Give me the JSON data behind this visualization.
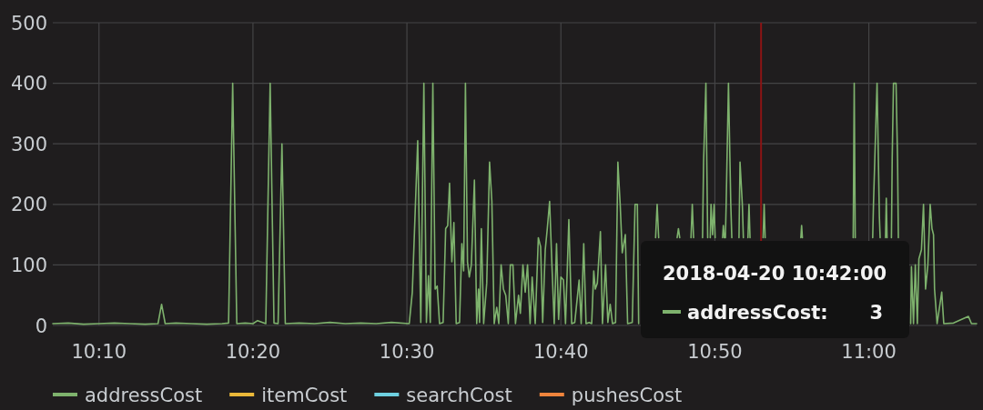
{
  "chart_data": {
    "type": "line",
    "series": [
      {
        "name": "addressCost",
        "color": "#7eb26d",
        "x": [
          "2018-04-20T10:07:00",
          "2018-04-20T10:08:00",
          "2018-04-20T10:09:00",
          "2018-04-20T10:10:00",
          "2018-04-20T10:11:00",
          "2018-04-20T10:12:00",
          "2018-04-20T10:13:00",
          "2018-04-20T10:13:50",
          "2018-04-20T10:14:04",
          "2018-04-20T10:14:18",
          "2018-04-20T10:15:00",
          "2018-04-20T10:16:00",
          "2018-04-20T10:17:00",
          "2018-04-20T10:18:00",
          "2018-04-20T10:18:25",
          "2018-04-20T10:18:41",
          "2018-04-20T10:18:57",
          "2018-04-20T10:19:30",
          "2018-04-20T10:20:00",
          "2018-04-20T10:20:18",
          "2018-04-20T10:20:50",
          "2018-04-20T10:21:07",
          "2018-04-20T10:21:22",
          "2018-04-20T10:21:38",
          "2018-04-20T10:21:53",
          "2018-04-20T10:22:06",
          "2018-04-20T10:23:00",
          "2018-04-20T10:24:00",
          "2018-04-20T10:25:00",
          "2018-04-20T10:26:00",
          "2018-04-20T10:27:00",
          "2018-04-20T10:28:00",
          "2018-04-20T10:29:00",
          "2018-04-20T10:30:09",
          "2018-04-20T10:30:21",
          "2018-04-20T10:30:42",
          "2018-04-20T10:30:54",
          "2018-04-20T10:31:06",
          "2018-04-20T10:31:16",
          "2018-04-20T10:31:24",
          "2018-04-20T10:31:31",
          "2018-04-20T10:31:41",
          "2018-04-20T10:31:50",
          "2018-04-20T10:31:58",
          "2018-04-20T10:32:07",
          "2018-04-20T10:32:21",
          "2018-04-20T10:32:31",
          "2018-04-20T10:32:39",
          "2018-04-20T10:32:46",
          "2018-04-20T10:32:55",
          "2018-04-20T10:33:03",
          "2018-04-20T10:33:12",
          "2018-04-20T10:33:25",
          "2018-04-20T10:33:34",
          "2018-04-20T10:33:41",
          "2018-04-20T10:33:48",
          "2018-04-20T10:33:56",
          "2018-04-20T10:34:03",
          "2018-04-20T10:34:11",
          "2018-04-20T10:34:23",
          "2018-04-20T10:34:32",
          "2018-04-20T10:34:39",
          "2018-04-20T10:34:43",
          "2018-04-20T10:34:50",
          "2018-04-20T10:34:59",
          "2018-04-20T10:35:11",
          "2018-04-20T10:35:22",
          "2018-04-20T10:35:31",
          "2018-04-20T10:35:40",
          "2018-04-20T10:35:50",
          "2018-04-20T10:35:58",
          "2018-04-20T10:36:07",
          "2018-04-20T10:36:16",
          "2018-04-20T10:36:25",
          "2018-04-20T10:36:35",
          "2018-04-20T10:36:43",
          "2018-04-20T10:36:53",
          "2018-04-20T10:37:03",
          "2018-04-20T10:37:15",
          "2018-04-20T10:37:22",
          "2018-04-20T10:37:32",
          "2018-04-20T10:37:41",
          "2018-04-20T10:37:50",
          "2018-04-20T10:38:00",
          "2018-04-20T10:38:08",
          "2018-04-20T10:38:20",
          "2018-04-20T10:38:32",
          "2018-04-20T10:38:41",
          "2018-04-20T10:38:49",
          "2018-04-20T10:38:59",
          "2018-04-20T10:39:07",
          "2018-04-20T10:39:16",
          "2018-04-20T10:39:25",
          "2018-04-20T10:39:34",
          "2018-04-20T10:39:43",
          "2018-04-20T10:39:51",
          "2018-04-20T10:40:00",
          "2018-04-20T10:40:10",
          "2018-04-20T10:40:18",
          "2018-04-20T10:40:31",
          "2018-04-20T10:40:42",
          "2018-04-20T10:40:54",
          "2018-04-20T10:41:11",
          "2018-04-20T10:41:19",
          "2018-04-20T10:41:29",
          "2018-04-20T10:41:38",
          "2018-04-20T10:41:50",
          "2018-04-20T10:42:00",
          "2018-04-20T10:42:08",
          "2018-04-20T10:42:14",
          "2018-04-20T10:42:22",
          "2018-04-20T10:42:34",
          "2018-04-20T10:42:42",
          "2018-04-20T10:42:54",
          "2018-04-20T10:43:03",
          "2018-04-20T10:43:12",
          "2018-04-20T10:43:21",
          "2018-04-20T10:43:33",
          "2018-04-20T10:43:42",
          "2018-04-20T10:43:51",
          "2018-04-20T10:43:59",
          "2018-04-20T10:44:11",
          "2018-04-20T10:44:20",
          "2018-04-20T10:44:38",
          "2018-04-20T10:44:49",
          "2018-04-20T10:44:58",
          "2018-04-20T10:45:03",
          "2018-04-20T10:45:40",
          "2018-04-20T10:46:09",
          "2018-04-20T10:46:15",
          "2018-04-20T10:46:21",
          "2018-04-20T10:47:00",
          "2018-04-20T10:47:33",
          "2018-04-20T10:47:38",
          "2018-04-20T10:47:43",
          "2018-04-20T10:48:00",
          "2018-04-20T10:48:27",
          "2018-04-20T10:48:32",
          "2018-04-20T10:48:37",
          "2018-04-20T10:48:55",
          "2018-04-20T10:49:12",
          "2018-04-20T10:49:16",
          "2018-04-20T10:49:25",
          "2018-04-20T10:49:32",
          "2018-04-20T10:49:38",
          "2018-04-20T10:49:42",
          "2018-04-20T10:49:45",
          "2018-04-20T10:49:51",
          "2018-04-20T10:49:57",
          "2018-04-20T10:50:01",
          "2018-04-20T10:50:15",
          "2018-04-20T10:50:30",
          "2018-04-20T10:50:33",
          "2018-04-20T10:50:37",
          "2018-04-20T10:50:39",
          "2018-04-20T10:50:41",
          "2018-04-20T10:50:44",
          "2018-04-20T10:50:53",
          "2018-04-20T10:51:02",
          "2018-04-20T10:51:06",
          "2018-04-20T10:51:20",
          "2018-04-20T10:51:34",
          "2018-04-20T10:51:38",
          "2018-04-20T10:51:47",
          "2018-04-20T10:51:51",
          "2018-04-20T10:52:00",
          "2018-04-20T10:52:09",
          "2018-04-20T10:52:13",
          "2018-04-20T10:52:17",
          "2018-04-20T10:52:40",
          "2018-04-20T10:53:08",
          "2018-04-20T10:53:12",
          "2018-04-20T10:53:16",
          "2018-04-20T10:54:30",
          "2018-04-20T10:55:35",
          "2018-04-20T10:55:38",
          "2018-04-20T10:55:41",
          "2018-04-20T10:57:00",
          "2018-04-20T10:58:59",
          "2018-04-20T10:59:03",
          "2018-04-20T10:59:07",
          "2018-04-20T10:59:40",
          "2018-04-20T11:00:15",
          "2018-04-20T11:00:18",
          "2018-04-20T11:00:32",
          "2018-04-20T11:00:41",
          "2018-04-20T11:00:44",
          "2018-04-20T11:00:55",
          "2018-04-20T11:01:05",
          "2018-04-20T11:01:08",
          "2018-04-20T11:01:11",
          "2018-04-20T11:01:18",
          "2018-04-20T11:01:28",
          "2018-04-20T11:01:31",
          "2018-04-20T11:01:36",
          "2018-04-20T11:01:46",
          "2018-04-20T11:01:52",
          "2018-04-20T11:01:55",
          "2018-04-20T11:02:20",
          "2018-04-20T11:02:43",
          "2018-04-20T11:02:46",
          "2018-04-20T11:02:54",
          "2018-04-20T11:03:01",
          "2018-04-20T11:03:09",
          "2018-04-20T11:03:15",
          "2018-04-20T11:03:25",
          "2018-04-20T11:03:33",
          "2018-04-20T11:03:41",
          "2018-04-20T11:03:50",
          "2018-04-20T11:03:59",
          "2018-04-20T11:04:06",
          "2018-04-20T11:04:12",
          "2018-04-20T11:04:16",
          "2018-04-20T11:04:26",
          "2018-04-20T11:04:44",
          "2018-04-20T11:04:52",
          "2018-04-20T11:05:30",
          "2018-04-20T11:06:28",
          "2018-04-20T11:06:40",
          "2018-04-20T11:07:00"
        ],
        "values": [
          3,
          4,
          2,
          3,
          4,
          3,
          2,
          3,
          35,
          3,
          4,
          3,
          2,
          3,
          4,
          400,
          3,
          4,
          3,
          8,
          3,
          400,
          4,
          3,
          300,
          3,
          4,
          3,
          5,
          3,
          4,
          3,
          5,
          3,
          55,
          305,
          5,
          400,
          5,
          82,
          5,
          400,
          60,
          65,
          3,
          5,
          160,
          165,
          235,
          105,
          170,
          3,
          5,
          135,
          90,
          400,
          105,
          80,
          100,
          240,
          3,
          60,
          5,
          160,
          3,
          70,
          270,
          205,
          3,
          30,
          3,
          100,
          60,
          50,
          3,
          100,
          100,
          3,
          50,
          20,
          100,
          55,
          100,
          3,
          80,
          3,
          145,
          130,
          5,
          125,
          160,
          205,
          100,
          3,
          135,
          10,
          80,
          75,
          3,
          175,
          3,
          5,
          75,
          3,
          135,
          3,
          5,
          3,
          90,
          60,
          70,
          155,
          3,
          100,
          5,
          35,
          3,
          5,
          270,
          200,
          120,
          150,
          3,
          5,
          200,
          200,
          3,
          null,
          145,
          200,
          145,
          null,
          145,
          160,
          145,
          null,
          145,
          200,
          145,
          null,
          145,
          270,
          400,
          145,
          null,
          145,
          200,
          150,
          200,
          145,
          null,
          145,
          165,
          145,
          null,
          145,
          200,
          400,
          200,
          145,
          null,
          145,
          270,
          200,
          145,
          null,
          145,
          200,
          145,
          null,
          145,
          200,
          145,
          null,
          145,
          165,
          145,
          null,
          145,
          400,
          145,
          null,
          145,
          200,
          400,
          180,
          145,
          null,
          145,
          210,
          145,
          null,
          145,
          275,
          400,
          400,
          270,
          145,
          null,
          3,
          97,
          3,
          100,
          3,
          110,
          125,
          200,
          60,
          100,
          200,
          160,
          150,
          60,
          3,
          55,
          3,
          4,
          15,
          3,
          3
        ]
      },
      {
        "name": "itemCost",
        "color": "#eab839"
      },
      {
        "name": "searchCost",
        "color": "#6ed0e0"
      },
      {
        "name": "pushesCost",
        "color": "#ef843c"
      }
    ],
    "xlim": [
      "2018-04-20T10:07",
      "2018-04-20T11:07"
    ],
    "xticks": [
      {
        "value": "2018-04-20T10:10",
        "label": "10:10"
      },
      {
        "value": "2018-04-20T10:20",
        "label": "10:20"
      },
      {
        "value": "2018-04-20T10:30",
        "label": "10:30"
      },
      {
        "value": "2018-04-20T10:40",
        "label": "10:40"
      },
      {
        "value": "2018-04-20T10:50",
        "label": "10:50"
      },
      {
        "value": "2018-04-20T11:00",
        "label": "11:00"
      }
    ],
    "ylim": [
      0,
      500
    ],
    "yticks": [
      0,
      100,
      200,
      300,
      400,
      500
    ],
    "grid": true,
    "legend": "bottom",
    "ref_lines": [
      {
        "axis": "x",
        "value": "2018-04-20T10:53",
        "color": "#8b1414"
      }
    ],
    "annotations": [
      "2018-04-20 10:42:00",
      "addressCost:",
      "3"
    ]
  }
}
